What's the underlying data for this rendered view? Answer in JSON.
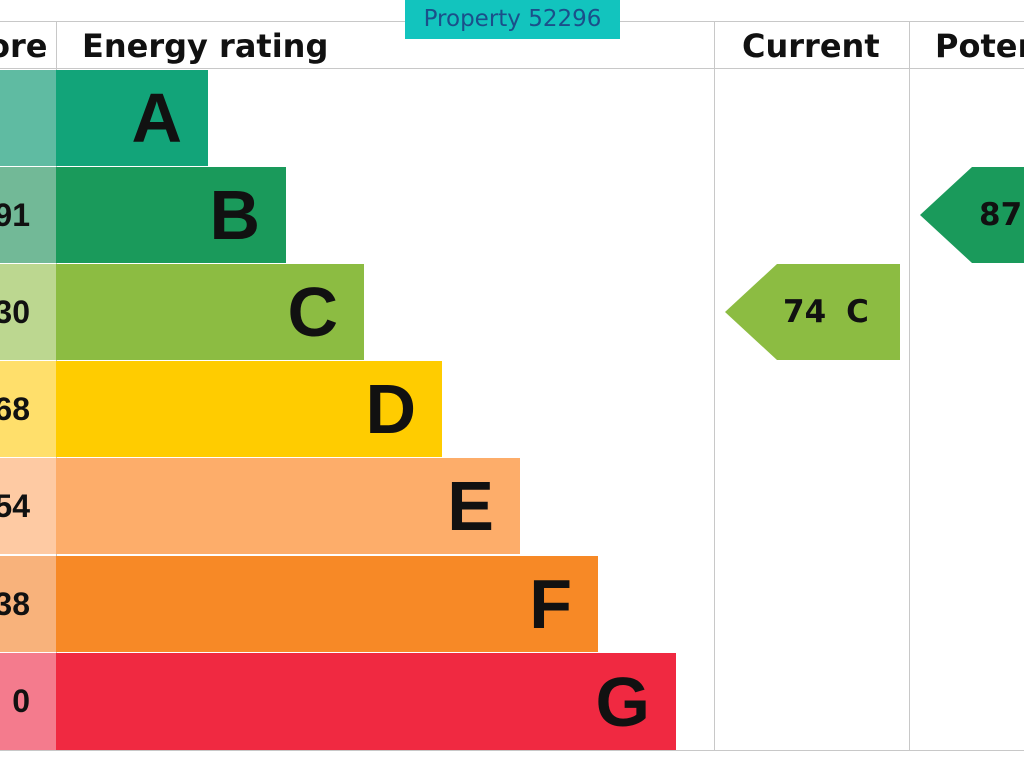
{
  "badge": {
    "text": "Property 52296"
  },
  "headers": {
    "score": "ore",
    "energy": "Energy rating",
    "current": "Current",
    "potential": "Poter"
  },
  "colors": {
    "A": "#12a479",
    "B": "#1a9a5b",
    "C": "#8cbc42",
    "D": "#ffcc00",
    "E": "#fdad6a",
    "F": "#f78926",
    "G": "#f02941",
    "badge": "#12c4be"
  },
  "chart_data": {
    "type": "bar",
    "categories": [
      "A",
      "B",
      "C",
      "D",
      "E",
      "F",
      "G"
    ],
    "score_column": [
      "",
      "91",
      "30",
      "68",
      "54",
      "38",
      "0"
    ],
    "bands": [
      {
        "letter": "A",
        "score": "",
        "color": "#12a479",
        "score_color": "#5fbba2"
      },
      {
        "letter": "B",
        "score": "91",
        "color": "#1a9a5b",
        "score_color": "#72b997"
      },
      {
        "letter": "C",
        "score": "30",
        "color": "#8cbc42",
        "score_color": "#bcd790"
      },
      {
        "letter": "D",
        "score": "68",
        "color": "#ffcc00",
        "score_color": "#ffdf6b"
      },
      {
        "letter": "E",
        "score": "54",
        "color": "#fdad6a",
        "score_color": "#fecaa3"
      },
      {
        "letter": "F",
        "score": "38",
        "color": "#f78926",
        "score_color": "#f8b27b"
      },
      {
        "letter": "G",
        "score": "0",
        "color": "#f02941",
        "score_color": "#f47b8d"
      }
    ],
    "current": {
      "value": "74",
      "band": "C",
      "color": "#8cbc42"
    },
    "potential": {
      "value": "87",
      "band": "B",
      "color": "#1a9a5b"
    }
  }
}
